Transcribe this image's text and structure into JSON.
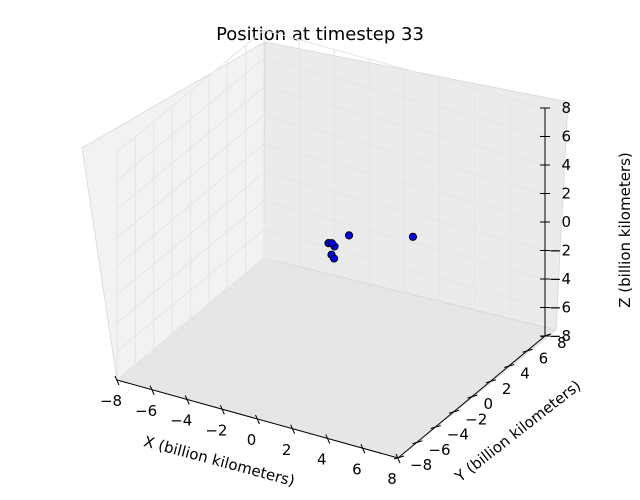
{
  "chart_data": {
    "type": "scatter",
    "title": "Position at timestep 33",
    "xlabel": "X (billion kilometers)",
    "ylabel": "Y (billion kilometers)",
    "zlabel": "Z (billion kilometers)",
    "xlim": [
      -8,
      8
    ],
    "ylim": [
      -8,
      8
    ],
    "zlim": [
      -8,
      8
    ],
    "ticks": [
      -8,
      -6,
      -4,
      -2,
      0,
      2,
      4,
      6,
      8
    ],
    "x_tick_labels": [
      "−8",
      "−6",
      "−4",
      "−2",
      "0",
      "2",
      "4",
      "6",
      "8"
    ],
    "y_tick_labels": [
      "−8",
      "−6",
      "−4",
      "−2",
      "0",
      "2",
      "4",
      "6",
      "8"
    ],
    "z_tick_labels": [
      "−8",
      "−6",
      "−4",
      "−2",
      "0",
      "2",
      "4",
      "6",
      "8"
    ],
    "grid": true,
    "marker_color": "#0000ff",
    "points": [
      {
        "x": -0.3,
        "y": 0.3,
        "z": -0.2
      },
      {
        "x": 0.2,
        "y": 0.0,
        "z": -0.1
      },
      {
        "x": 0.0,
        "y": 0.1,
        "z": 0.0
      },
      {
        "x": 0.4,
        "y": 1.2,
        "z": 0.1
      },
      {
        "x": 0.5,
        "y": -0.9,
        "z": -0.1
      },
      {
        "x": 0.8,
        "y": -1.2,
        "z": -0.1
      },
      {
        "x": 3.2,
        "y": 2.8,
        "z": 0.1
      }
    ]
  }
}
